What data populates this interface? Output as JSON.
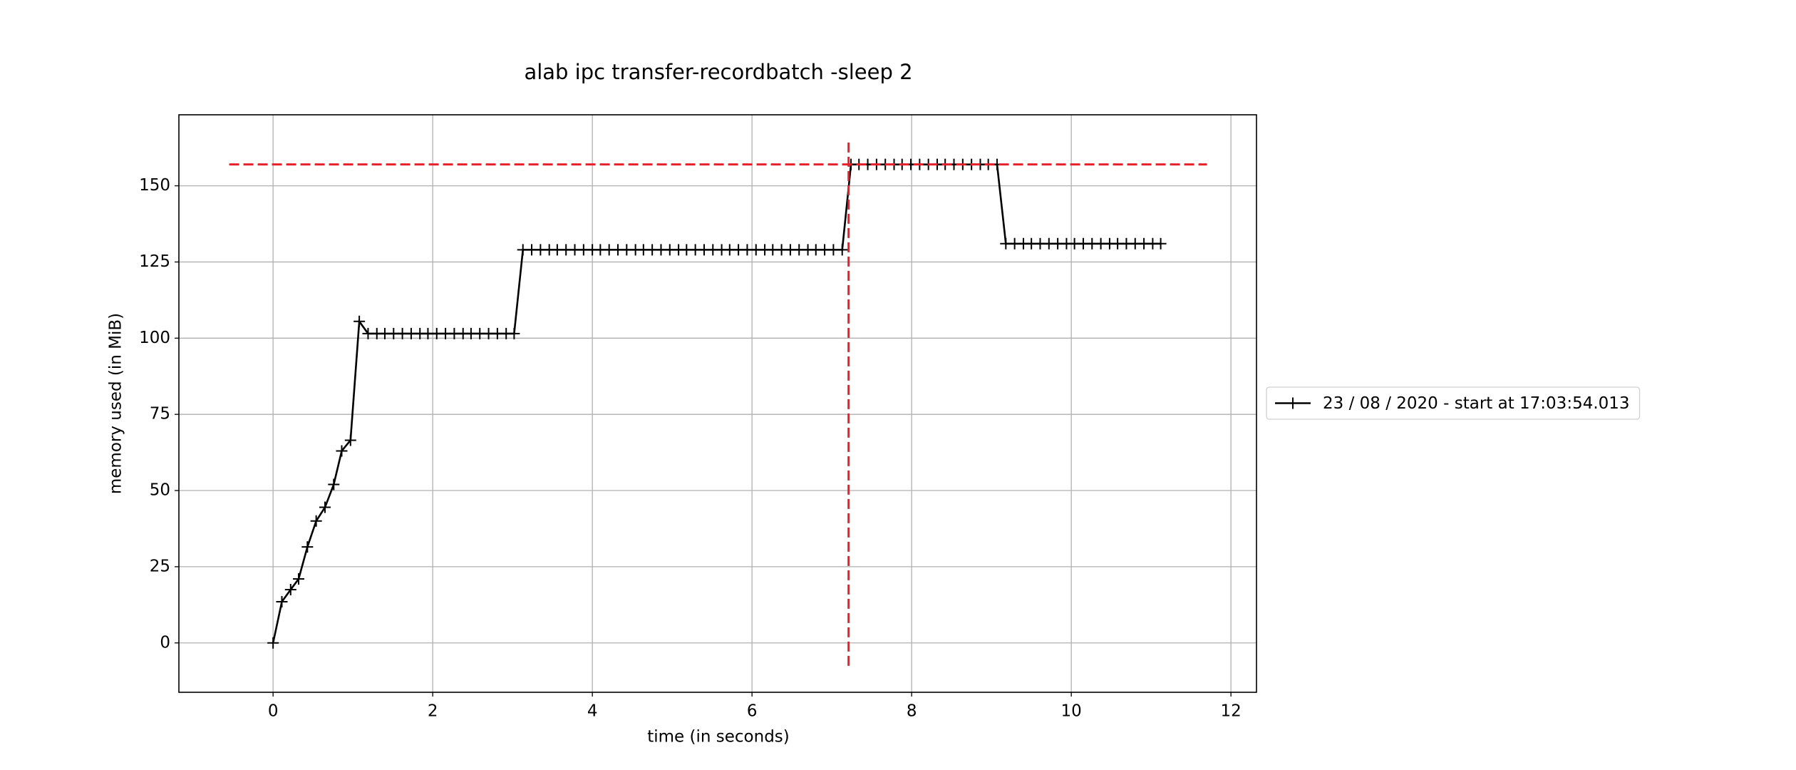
{
  "chart_data": {
    "type": "line",
    "title": "alab ipc transfer-recordbatch -sleep 2",
    "xlabel": "time (in seconds)",
    "ylabel": "memory used (in MiB)",
    "xlim": [
      -1.18,
      12.32
    ],
    "ylim": [
      -16.2,
      173.3
    ],
    "xticks": [
      0,
      2,
      4,
      6,
      8,
      10,
      12
    ],
    "yticks": [
      0,
      25,
      50,
      75,
      100,
      125,
      150
    ],
    "grid": true,
    "legend": "outside right",
    "x": [
      0,
      0.11,
      0.22,
      0.32,
      0.43,
      0.54,
      0.65,
      0.76,
      0.86,
      0.97,
      1.08,
      1.19,
      1.3,
      1.4,
      1.51,
      1.62,
      1.73,
      1.84,
      1.94,
      2.05,
      2.16,
      2.27,
      2.38,
      2.48,
      2.59,
      2.7,
      2.81,
      2.92,
      3.02,
      3.13,
      3.24,
      3.35,
      3.46,
      3.56,
      3.67,
      3.78,
      3.89,
      4.0,
      4.1,
      4.21,
      4.32,
      4.43,
      4.54,
      4.64,
      4.75,
      4.86,
      4.97,
      5.08,
      5.18,
      5.29,
      5.4,
      5.51,
      5.62,
      5.72,
      5.83,
      5.94,
      6.05,
      6.16,
      6.26,
      6.37,
      6.48,
      6.59,
      6.7,
      6.8,
      6.91,
      7.02,
      7.13,
      7.24,
      7.34,
      7.45,
      7.56,
      7.67,
      7.78,
      7.88,
      7.99,
      8.1,
      8.21,
      8.32,
      8.42,
      8.53,
      8.64,
      8.75,
      8.86,
      8.96,
      9.07,
      9.18,
      9.29,
      9.4,
      9.5,
      9.61,
      9.72,
      9.83,
      9.94,
      10.04,
      10.15,
      10.26,
      10.37,
      10.48,
      10.58,
      10.69,
      10.8,
      10.91,
      11.02,
      11.12
    ],
    "series": [
      {
        "name": "23 / 08 / 2020 - start at 17:03:54.013",
        "color": "#000000",
        "values": [
          0,
          13.5,
          17.5,
          21,
          31.5,
          40,
          44.5,
          52,
          63,
          66.5,
          105.5,
          101.5,
          101.5,
          101.5,
          101.5,
          101.5,
          101.5,
          101.5,
          101.5,
          101.5,
          101.5,
          101.5,
          101.5,
          101.5,
          101.5,
          101.5,
          101.5,
          101.5,
          101.5,
          129,
          129,
          129,
          129,
          129,
          129,
          129,
          129,
          129,
          129,
          129,
          129,
          129,
          129,
          129,
          129,
          129,
          129,
          129,
          129,
          129,
          129,
          129,
          129,
          129,
          129,
          129,
          129,
          129,
          129,
          129,
          129,
          129,
          129,
          129,
          129,
          129,
          129,
          157,
          157,
          157,
          157,
          157,
          157,
          157,
          157,
          157,
          157,
          157,
          157,
          157,
          157,
          157,
          157,
          157,
          157,
          131,
          131,
          131,
          131,
          131,
          131,
          131,
          131,
          131,
          131,
          131,
          131,
          131,
          131,
          131,
          131,
          131,
          131,
          131
        ]
      }
    ],
    "reference_lines": [
      {
        "orientation": "horizontal",
        "y": 157,
        "xrange": [
          -0.55,
          11.7
        ],
        "color": "#e8202a"
      },
      {
        "orientation": "vertical",
        "x": 7.21,
        "yrange": [
          -7.5,
          164.3
        ],
        "color": "#e8202a"
      }
    ]
  }
}
